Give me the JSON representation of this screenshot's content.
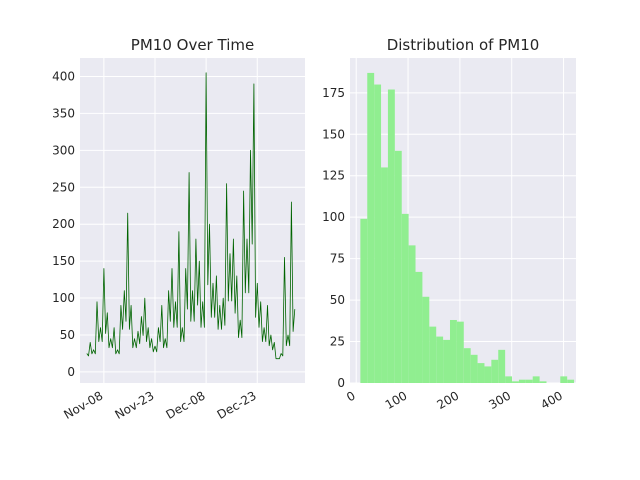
{
  "chart_data": [
    {
      "type": "line",
      "title": "PM10 Over Time",
      "xlabel": "",
      "ylabel": "",
      "color": "#006400",
      "grid": true,
      "xlim": [
        "2024-11-01",
        "2025-01-06"
      ],
      "ylim": [
        -15,
        425
      ],
      "x_ticks": [
        "Nov-08",
        "Nov-23",
        "Dec-08",
        "Dec-23"
      ],
      "x_tick_dates": [
        "2024-11-08",
        "2024-11-23",
        "2024-12-08",
        "2024-12-23"
      ],
      "y_ticks": [
        0,
        50,
        100,
        150,
        200,
        250,
        300,
        350,
        400
      ],
      "x": [
        "2024-11-03",
        "2024-11-04",
        "2024-11-05",
        "2024-11-06",
        "2024-11-07",
        "2024-11-08",
        "2024-11-09",
        "2024-11-10",
        "2024-11-11",
        "2024-11-12",
        "2024-11-13",
        "2024-11-14",
        "2024-11-15",
        "2024-11-16",
        "2024-11-17",
        "2024-11-18",
        "2024-11-19",
        "2024-11-20",
        "2024-11-21",
        "2024-11-22",
        "2024-11-23",
        "2024-11-24",
        "2024-11-25",
        "2024-11-26",
        "2024-11-27",
        "2024-11-28",
        "2024-11-29",
        "2024-11-30",
        "2024-12-01",
        "2024-12-02",
        "2024-12-03",
        "2024-12-04",
        "2024-12-05",
        "2024-12-06",
        "2024-12-07",
        "2024-12-08",
        "2024-12-09",
        "2024-12-10",
        "2024-12-11",
        "2024-12-12",
        "2024-12-13",
        "2024-12-14",
        "2024-12-15",
        "2024-12-16",
        "2024-12-17",
        "2024-12-18",
        "2024-12-19",
        "2024-12-20",
        "2024-12-21",
        "2024-12-22",
        "2024-12-23",
        "2024-12-24",
        "2024-12-25",
        "2024-12-26",
        "2024-12-27",
        "2024-12-28",
        "2024-12-29",
        "2024-12-30",
        "2024-12-31",
        "2025-01-01",
        "2025-01-02",
        "2025-01-03"
      ],
      "y": [
        25,
        40,
        30,
        95,
        60,
        140,
        80,
        45,
        60,
        30,
        90,
        110,
        215,
        90,
        45,
        55,
        75,
        100,
        60,
        45,
        35,
        60,
        90,
        45,
        110,
        140,
        95,
        190,
        60,
        140,
        270,
        110,
        180,
        150,
        95,
        405,
        200,
        120,
        130,
        90,
        100,
        255,
        160,
        180,
        130,
        70,
        245,
        180,
        300,
        390,
        120,
        95,
        60,
        90,
        50,
        40,
        18,
        25,
        155,
        50,
        230,
        85
      ]
    },
    {
      "type": "bar",
      "title": "Distribution of PM10",
      "xlabel": "",
      "ylabel": "",
      "color": "#90ee90",
      "grid": true,
      "xlim": [
        -12,
        424
      ],
      "ylim": [
        0,
        196
      ],
      "x_ticks": [
        0,
        100,
        200,
        300,
        400
      ],
      "y_ticks": [
        0,
        25,
        50,
        75,
        100,
        125,
        150,
        175
      ],
      "bin_start": 8,
      "bin_width": 13.3,
      "values": [
        99,
        187,
        180,
        130,
        177,
        140,
        102,
        83,
        67,
        52,
        34,
        28,
        26,
        38,
        37,
        21,
        17,
        12,
        10,
        14,
        20,
        4,
        1,
        2,
        2,
        4,
        1,
        0,
        0,
        4,
        2
      ]
    }
  ]
}
